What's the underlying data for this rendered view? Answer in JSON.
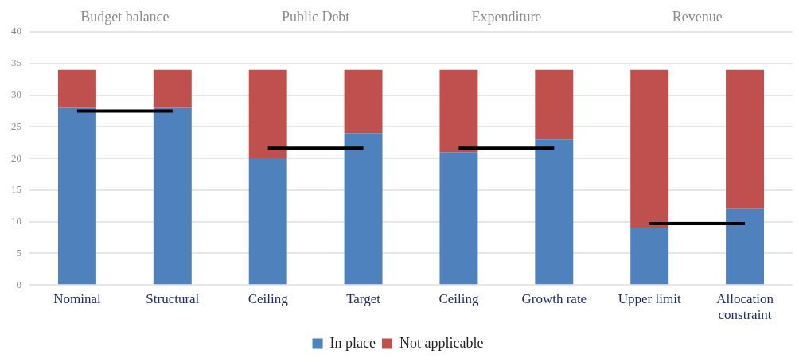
{
  "chart_data": {
    "type": "bar",
    "stacked": true,
    "categories": [
      "Nominal",
      "Structural",
      "Ceiling",
      "Target",
      "Ceiling",
      "Growth rate",
      "Upper limit",
      "Allocation constraint"
    ],
    "series": [
      {
        "name": "In place",
        "color": "#4f81bd",
        "values": [
          28,
          28,
          20,
          24,
          21,
          23,
          9,
          12
        ]
      },
      {
        "name": "Not applicable",
        "color": "#c0504d",
        "values": [
          6,
          6,
          14,
          10,
          13,
          11,
          25,
          22
        ]
      },
      {
        "type": "line",
        "color": "#000000",
        "values": [
          27.5,
          27.5,
          null,
          null,
          null,
          null,
          null,
          null
        ]
      },
      {
        "type": "line",
        "color": "#000000",
        "values": [
          null,
          null,
          21.6,
          21.6,
          null,
          null,
          null,
          null
        ]
      },
      {
        "type": "line",
        "color": "#000000",
        "values": [
          null,
          null,
          null,
          null,
          21.6,
          21.6,
          null,
          null
        ]
      },
      {
        "type": "line",
        "color": "#000000",
        "values": [
          null,
          null,
          null,
          null,
          null,
          null,
          9.7,
          9.7
        ]
      }
    ],
    "ylim": [
      0,
      40
    ],
    "yticks": [
      0,
      5,
      10,
      15,
      20,
      25,
      30,
      35,
      40
    ],
    "grid": "y",
    "legend": "bottom",
    "annotations": [
      "Budget balance",
      "Public Debt",
      "Expenditure",
      "Revenue"
    ]
  }
}
